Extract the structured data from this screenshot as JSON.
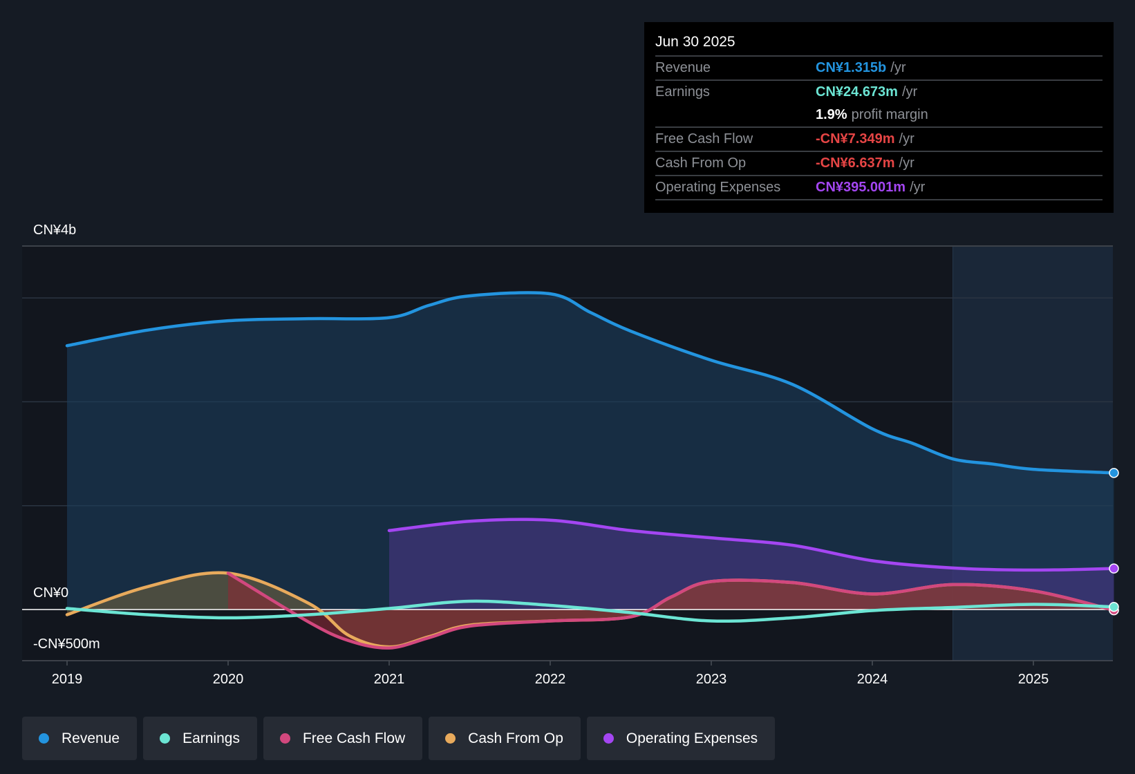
{
  "tooltip": {
    "date": "Jun 30 2025",
    "rows": [
      {
        "label": "Revenue",
        "value": "CN¥1.315b",
        "unit": "/yr",
        "color": "#2394df"
      },
      {
        "label": "Earnings",
        "value": "CN¥24.673m",
        "unit": "/yr",
        "color": "#6ce5d4"
      },
      {
        "label": "",
        "value": "1.9%",
        "unit": "profit margin",
        "color": "#ffffff"
      },
      {
        "label": "Free Cash Flow",
        "value": "-CN¥7.349m",
        "unit": "/yr",
        "color": "#e64545"
      },
      {
        "label": "Cash From Op",
        "value": "-CN¥6.637m",
        "unit": "/yr",
        "color": "#e64545"
      },
      {
        "label": "Operating Expenses",
        "value": "CN¥395.001m",
        "unit": "/yr",
        "color": "#a446f2"
      }
    ]
  },
  "chart_data": {
    "type": "line",
    "title": "",
    "ylabel": "",
    "y_labels": {
      "top": "CN¥4b",
      "zero": "CN¥0",
      "bottom": "-CN¥500m"
    },
    "ylim_millions": [
      -500,
      3500
    ],
    "xlim": [
      2018.75,
      2025.5
    ],
    "x_ticks": [
      "2019",
      "2020",
      "2021",
      "2022",
      "2023",
      "2024",
      "2025"
    ],
    "forecast_region_start": 2024.5,
    "series": [
      {
        "name": "Revenue",
        "color": "#2394df",
        "fill": "#1a3d5c",
        "x": [
          2019,
          2019.5,
          2020,
          2020.5,
          2021,
          2021.25,
          2021.5,
          2022,
          2022.25,
          2022.5,
          2023,
          2023.5,
          2024,
          2024.25,
          2024.5,
          2024.75,
          2025,
          2025.5
        ],
        "y": [
          2540,
          2690,
          2780,
          2800,
          2810,
          2930,
          3020,
          3040,
          2860,
          2680,
          2400,
          2170,
          1740,
          1600,
          1450,
          1400,
          1350,
          1315
        ]
      },
      {
        "name": "Operating Expenses",
        "color": "#a446f2",
        "fill": "#4a3585",
        "x": [
          2021,
          2021.5,
          2022,
          2022.5,
          2023,
          2023.5,
          2024,
          2024.5,
          2025,
          2025.5
        ],
        "y": [
          760,
          850,
          860,
          760,
          690,
          620,
          470,
          400,
          380,
          395
        ]
      },
      {
        "name": "Earnings",
        "color": "#6ce5d4",
        "fill": "none",
        "x": [
          2019,
          2019.5,
          2020,
          2020.5,
          2021,
          2021.5,
          2022,
          2022.5,
          2023,
          2023.5,
          2024,
          2024.5,
          2025,
          2025.5
        ],
        "y": [
          10,
          -50,
          -80,
          -50,
          10,
          80,
          40,
          -30,
          -110,
          -80,
          -10,
          20,
          50,
          25
        ]
      },
      {
        "name": "Free Cash Flow",
        "color": "#d2487e",
        "fill": "#8a2a35",
        "x": [
          2020,
          2020.5,
          2020.75,
          2021,
          2021.25,
          2021.5,
          2022,
          2022.5,
          2022.75,
          2023,
          2023.5,
          2024,
          2024.5,
          2025,
          2025.5
        ],
        "y": [
          350,
          -120,
          -300,
          -370,
          -270,
          -160,
          -110,
          -70,
          120,
          270,
          260,
          150,
          240,
          180,
          -7
        ]
      },
      {
        "name": "Cash From Op",
        "color": "#e8aa5c",
        "fill": "#6e6040",
        "x": [
          2019,
          2019.5,
          2020,
          2020.5,
          2020.75,
          2021,
          2021.25,
          2021.5,
          2022,
          2022.5,
          2022.75,
          2023,
          2023.5,
          2024,
          2024.5,
          2025,
          2025.5
        ],
        "y": [
          -50,
          220,
          350,
          60,
          -250,
          -360,
          -260,
          -150,
          -110,
          -70,
          120,
          270,
          260,
          150,
          240,
          180,
          -7
        ]
      }
    ]
  },
  "legend": [
    {
      "label": "Revenue",
      "color": "#2394df"
    },
    {
      "label": "Earnings",
      "color": "#6ce5d4"
    },
    {
      "label": "Free Cash Flow",
      "color": "#d2487e"
    },
    {
      "label": "Cash From Op",
      "color": "#e8aa5c"
    },
    {
      "label": "Operating Expenses",
      "color": "#a446f2"
    }
  ]
}
